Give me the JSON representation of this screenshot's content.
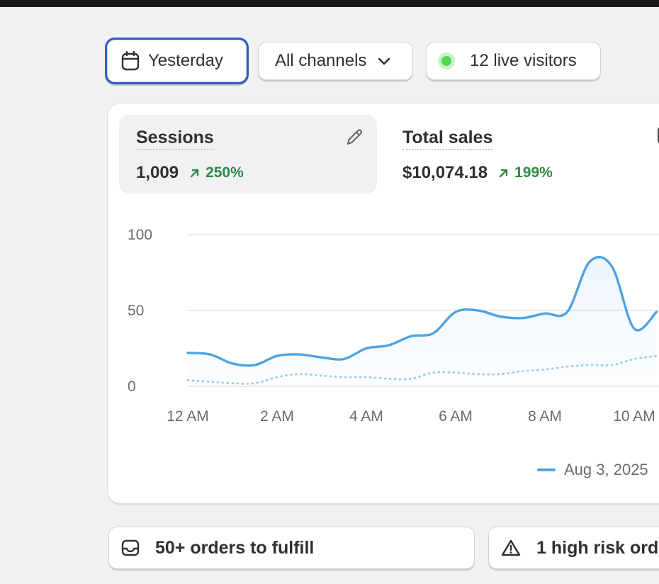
{
  "filters": {
    "date_label": "Yesterday",
    "channel_label": "All channels",
    "live_label": "12 live visitors"
  },
  "metrics": [
    {
      "title": "Sessions",
      "value": "1,009",
      "change": "250%"
    },
    {
      "title": "Total sales",
      "value": "$10,074.18",
      "change": "199%"
    }
  ],
  "colors": {
    "accent_blue": "#4fa3e2",
    "trend_green": "#2e8a48",
    "live_dot": "#54d854",
    "focus_ring": "#2c5bc4"
  },
  "chart_data": {
    "type": "line",
    "y_ticks": [
      "100",
      "50",
      "0"
    ],
    "ylim": [
      0,
      100
    ],
    "x_ticks": [
      "12 AM",
      "2 AM",
      "4 AM",
      "6 AM",
      "8 AM",
      "10 AM"
    ],
    "series": [
      {
        "name": "Aug 3, 2025",
        "style": "solid",
        "x": [
          0,
          0.5,
          1,
          1.5,
          2,
          2.5,
          3,
          3.5,
          4,
          4.5,
          5,
          5.5,
          6,
          6.5,
          7,
          7.5,
          8,
          8.5,
          9,
          9.5,
          10,
          10.5
        ],
        "values": [
          22,
          21,
          15,
          14,
          20,
          21,
          19,
          18,
          25,
          27,
          33,
          35,
          49,
          50,
          46,
          45,
          48,
          49,
          82,
          79,
          38,
          49
        ]
      },
      {
        "name": "",
        "style": "dotted",
        "x": [
          0,
          0.5,
          1,
          1.5,
          2,
          2.5,
          3,
          3.5,
          4,
          4.5,
          5,
          5.5,
          6,
          6.5,
          7,
          7.5,
          8,
          8.5,
          9,
          9.5,
          10,
          10.5
        ],
        "values": [
          4,
          3,
          2,
          2,
          6,
          8,
          7,
          6,
          6,
          5,
          5,
          9,
          9,
          8,
          8,
          10,
          11,
          13,
          14,
          14,
          18,
          20
        ]
      }
    ],
    "legend": "bottom-right",
    "grid": true
  },
  "tasks": [
    {
      "label": "50+ orders to fulfill"
    },
    {
      "label": "1 high risk ord"
    }
  ]
}
